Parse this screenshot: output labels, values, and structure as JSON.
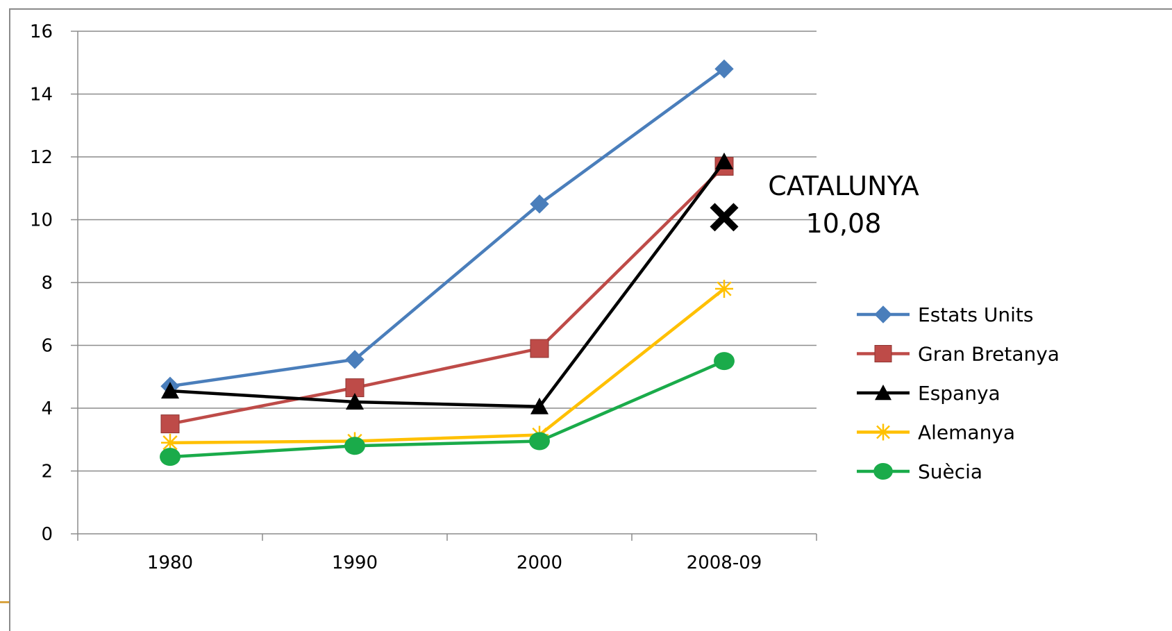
{
  "chart_data": {
    "type": "line",
    "categories": [
      "1980",
      "1990",
      "2000",
      "2008-09"
    ],
    "ylim": [
      0,
      16
    ],
    "yticks": [
      0,
      2,
      4,
      6,
      8,
      10,
      12,
      14,
      16
    ],
    "grid": true,
    "legend_position": "right",
    "series": [
      {
        "name": "Estats Units",
        "values": [
          4.7,
          5.55,
          10.5,
          14.8
        ],
        "color": "#4a7ebb",
        "marker": "diamond"
      },
      {
        "name": "Gran Bretanya",
        "values": [
          3.5,
          4.65,
          5.9,
          11.7
        ],
        "color": "#be4b48",
        "marker": "square"
      },
      {
        "name": "Espanya",
        "values": [
          4.55,
          4.2,
          4.05,
          11.85
        ],
        "color": "#000000",
        "marker": "triangle"
      },
      {
        "name": "Alemanya",
        "values": [
          2.9,
          2.95,
          3.15,
          7.8
        ],
        "color": "#ffc000",
        "marker": "asterisk"
      },
      {
        "name": "Suècia",
        "values": [
          2.45,
          2.8,
          2.95,
          5.5
        ],
        "color": "#1aab4a",
        "marker": "circle"
      }
    ],
    "annotation": {
      "category": "2008-09",
      "value": 10.08,
      "label_line1": "CATALUNYA",
      "label_line2": "10,08",
      "marker": "x-icon",
      "color": "#000000"
    }
  }
}
